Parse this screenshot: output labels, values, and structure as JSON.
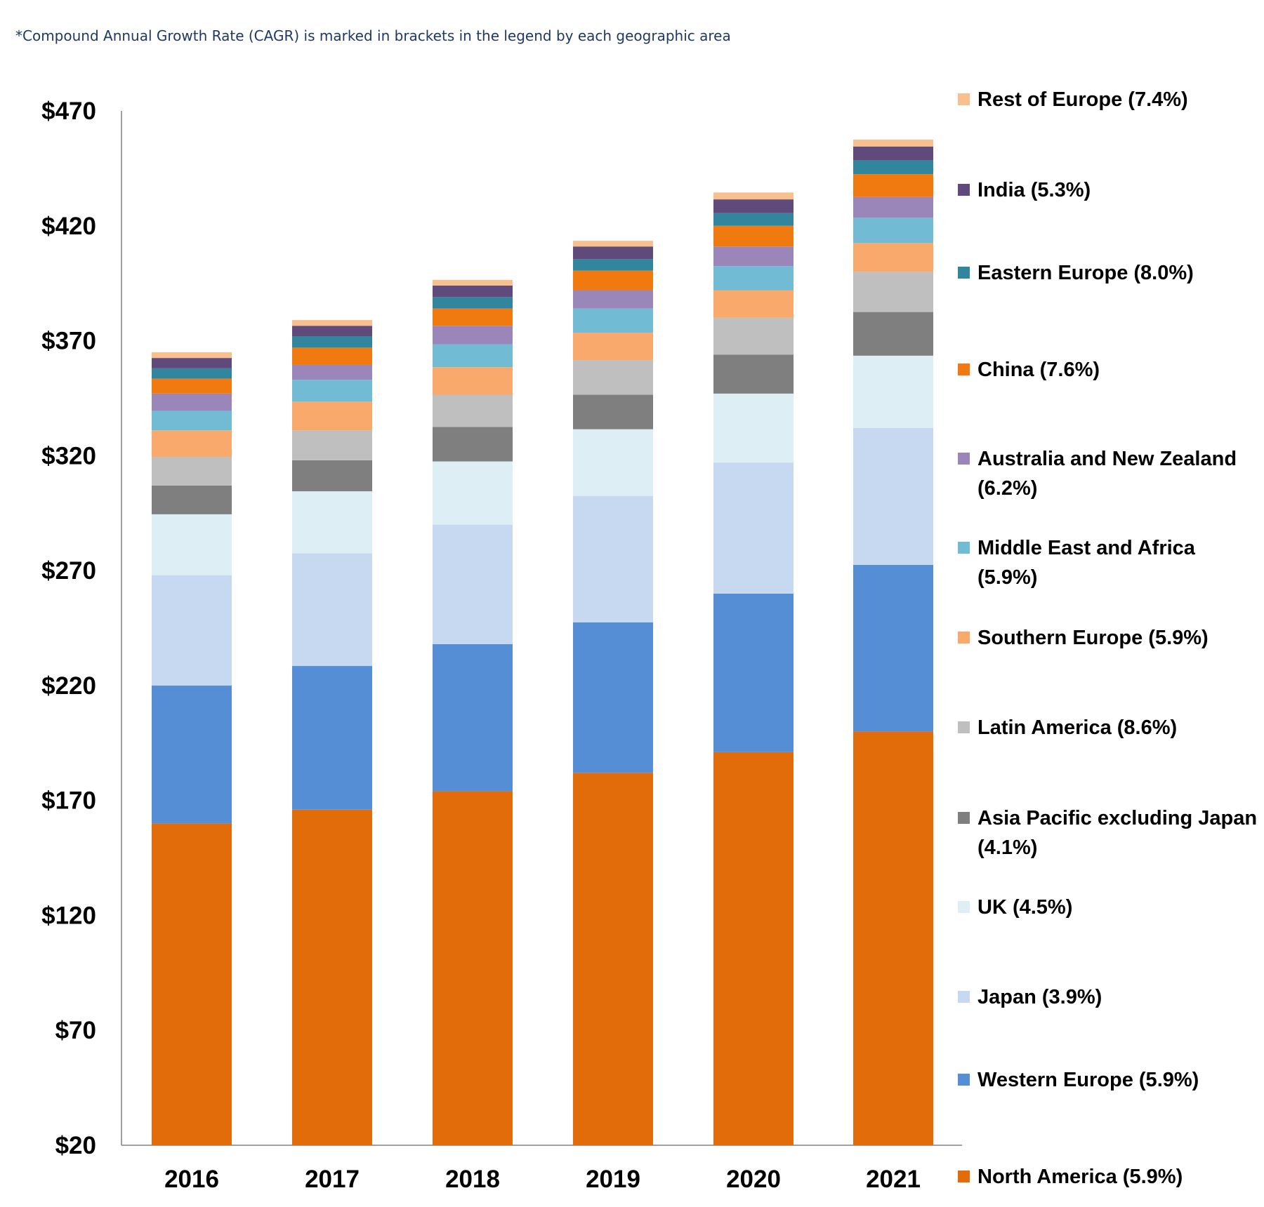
{
  "note": "*Compound Annual Growth Rate (CAGR) is marked in brackets in the legend by each geographic area",
  "chart_data": {
    "type": "bar",
    "stacked": true,
    "categories": [
      "2016",
      "2017",
      "2018",
      "2019",
      "2020",
      "2021"
    ],
    "ylim": [
      20,
      470
    ],
    "yticks": [
      20,
      70,
      120,
      170,
      220,
      270,
      320,
      370,
      420,
      470
    ],
    "ytick_labels": [
      "$20",
      "$70",
      "$120",
      "$170",
      "$220",
      "$270",
      "$320",
      "$370",
      "$420",
      "$470"
    ],
    "legend_position": "right",
    "series": [
      {
        "name": "North America",
        "cagr": "(5.9%)",
        "color": "#E36C0A",
        "values": [
          140,
          146,
          154,
          162,
          171,
          180
        ]
      },
      {
        "name": "Western Europe",
        "cagr": "(5.9%)",
        "color": "#558ED5",
        "values": [
          60,
          62.5,
          64,
          65.5,
          69,
          72.5
        ]
      },
      {
        "name": "Japan",
        "cagr": "(3.9%)",
        "color": "#C6D9F1",
        "values": [
          48,
          49,
          52,
          55,
          57,
          59.5
        ]
      },
      {
        "name": "UK",
        "cagr": "(4.5%)",
        "color": "#DDEEF4",
        "values": [
          26.5,
          27,
          27.5,
          29,
          30,
          31.5
        ]
      },
      {
        "name": "Asia Pacific excluding Japan",
        "cagr": "(4.1%)",
        "color": "#7F7F7F",
        "values": [
          12.5,
          13.5,
          15,
          15,
          17,
          19
        ]
      },
      {
        "name": "Latin America",
        "cagr": "(8.6%)",
        "color": "#BFBFBF",
        "values": [
          12.5,
          13,
          14,
          15,
          16,
          17.5
        ]
      },
      {
        "name": "Southern Europe",
        "cagr": "(5.9%)",
        "color": "#F8A96B",
        "values": [
          11.5,
          12.5,
          12,
          12,
          12,
          12.5
        ]
      },
      {
        "name": "Middle East and Africa",
        "cagr": "(5.9%)",
        "color": "#71BCD4",
        "values": [
          8.5,
          9.5,
          10,
          10.5,
          10.5,
          11
        ]
      },
      {
        "name": "Australia and New Zealand",
        "cagr": "(6.2%)",
        "color": "#9B86BA",
        "values": [
          7.5,
          6.5,
          8,
          8,
          8.5,
          9
        ]
      },
      {
        "name": "China",
        "cagr": "(7.6%)",
        "color": "#F07A10",
        "values": [
          6.5,
          7.5,
          7.5,
          8.5,
          9,
          10
        ]
      },
      {
        "name": "Eastern Europe",
        "cagr": "(8.0%)",
        "color": "#31859C",
        "values": [
          4.5,
          5,
          5,
          5,
          5.5,
          6
        ]
      },
      {
        "name": "India",
        "cagr": "(5.3%)",
        "color": "#604A7B",
        "values": [
          4.5,
          4.5,
          5,
          5.5,
          6,
          6
        ]
      },
      {
        "name": "Rest of Europe",
        "cagr": "(7.4%)",
        "color": "#F9C08F",
        "values": [
          2.5,
          2.5,
          2.5,
          2.5,
          3,
          3
        ]
      }
    ]
  }
}
